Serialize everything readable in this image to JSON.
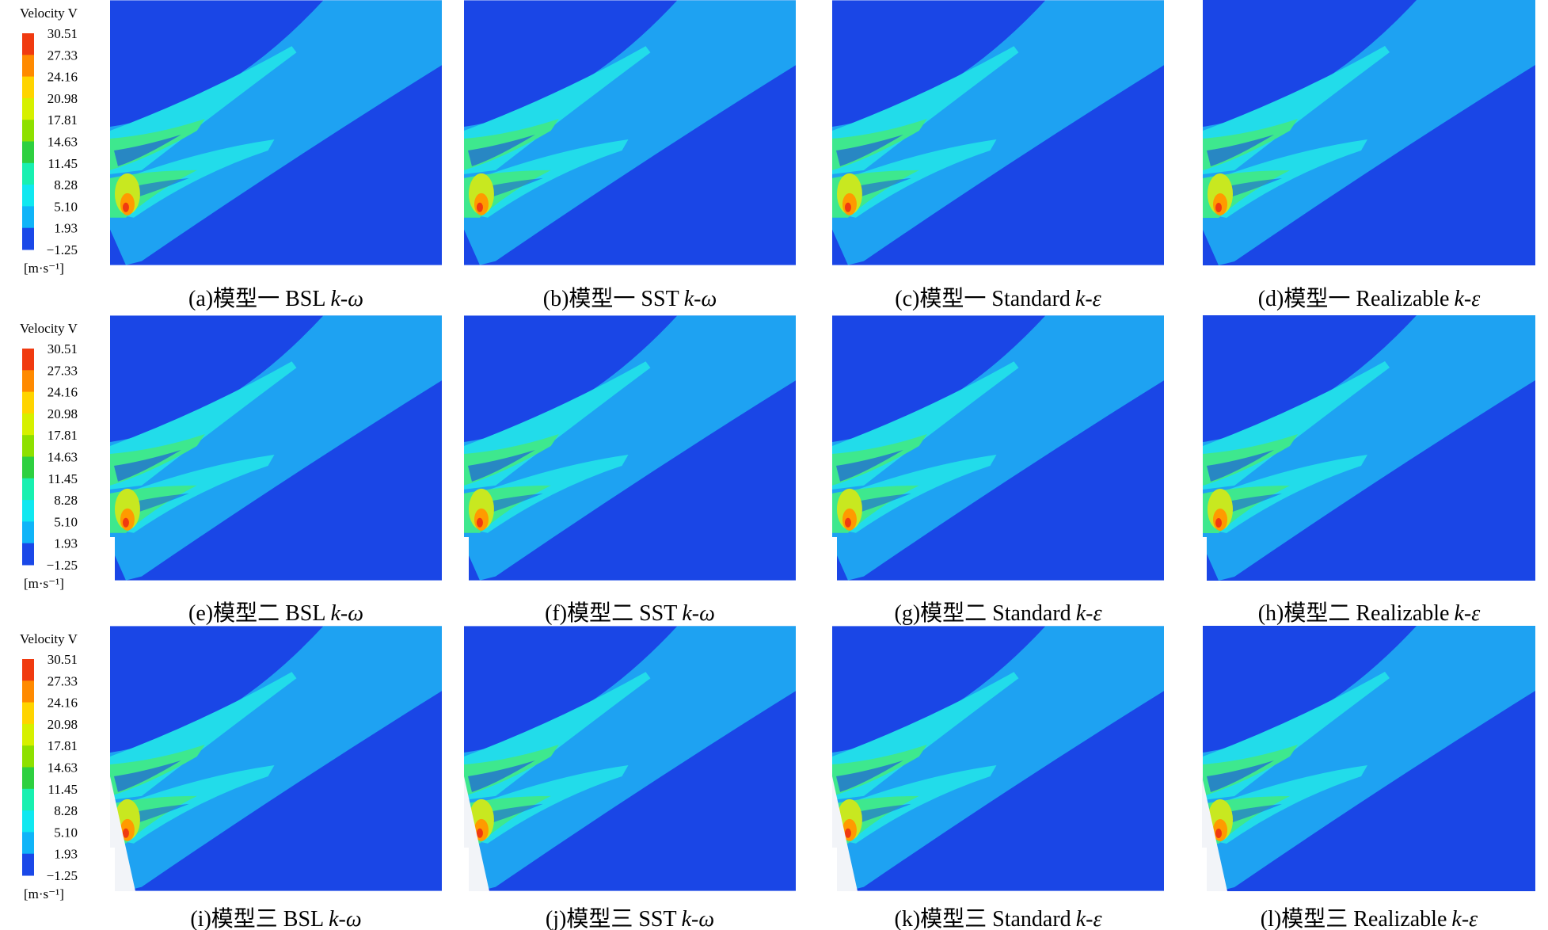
{
  "legends": [
    {
      "title": "Velocity V",
      "labels": [
        "30.51",
        "27.33",
        "24.16",
        "20.98",
        "17.81",
        "14.63",
        "11.45",
        "8.28",
        "5.10",
        "1.93",
        "−1.25"
      ],
      "unit": "[m·s⁻¹]"
    },
    {
      "title": "Velocity V",
      "labels": [
        "30.51",
        "27.33",
        "24.16",
        "20.98",
        "17.81",
        "14.63",
        "11.45",
        "8.28",
        "5.10",
        "1.93",
        "−1.25"
      ],
      "unit": "[m·s⁻¹]"
    },
    {
      "title": "Velocity V",
      "labels": [
        "30.51",
        "27.33",
        "24.16",
        "20.98",
        "17.81",
        "14.63",
        "11.45",
        "8.28",
        "5.10",
        "1.93",
        "−1.25"
      ],
      "unit": "[m·s⁻¹]"
    }
  ],
  "colorbar_colors": [
    "#f03a10",
    "#ff8a00",
    "#ffd400",
    "#d6f000",
    "#8ee000",
    "#2ed040",
    "#18f0b0",
    "#10e8f0",
    "#10b4f8",
    "#1a48e8"
  ],
  "panels": [
    {
      "label": "(a)模型一 BSL",
      "symbol": "k-ω"
    },
    {
      "label": "(b)模型一 SST",
      "symbol": "k-ω"
    },
    {
      "label": "(c)模型一 Standard",
      "symbol": "k-ε"
    },
    {
      "label": "(d)模型一 Realizable",
      "symbol": "k-ε"
    },
    {
      "label": "(e)模型二 BSL",
      "symbol": "k-ω"
    },
    {
      "label": "(f)模型二 SST",
      "symbol": "k-ω"
    },
    {
      "label": "(g)模型二 Standard",
      "symbol": "k-ε"
    },
    {
      "label": "(h)模型二 Realizable",
      "symbol": "k-ε"
    },
    {
      "label": "(i)模型三 BSL",
      "symbol": "k-ω"
    },
    {
      "label": "(j)模型三 SST",
      "symbol": "k-ω"
    },
    {
      "label": "(k)模型三 Standard",
      "symbol": "k-ε"
    },
    {
      "label": "(l)模型三 Realizable",
      "symbol": "k-ε"
    }
  ]
}
